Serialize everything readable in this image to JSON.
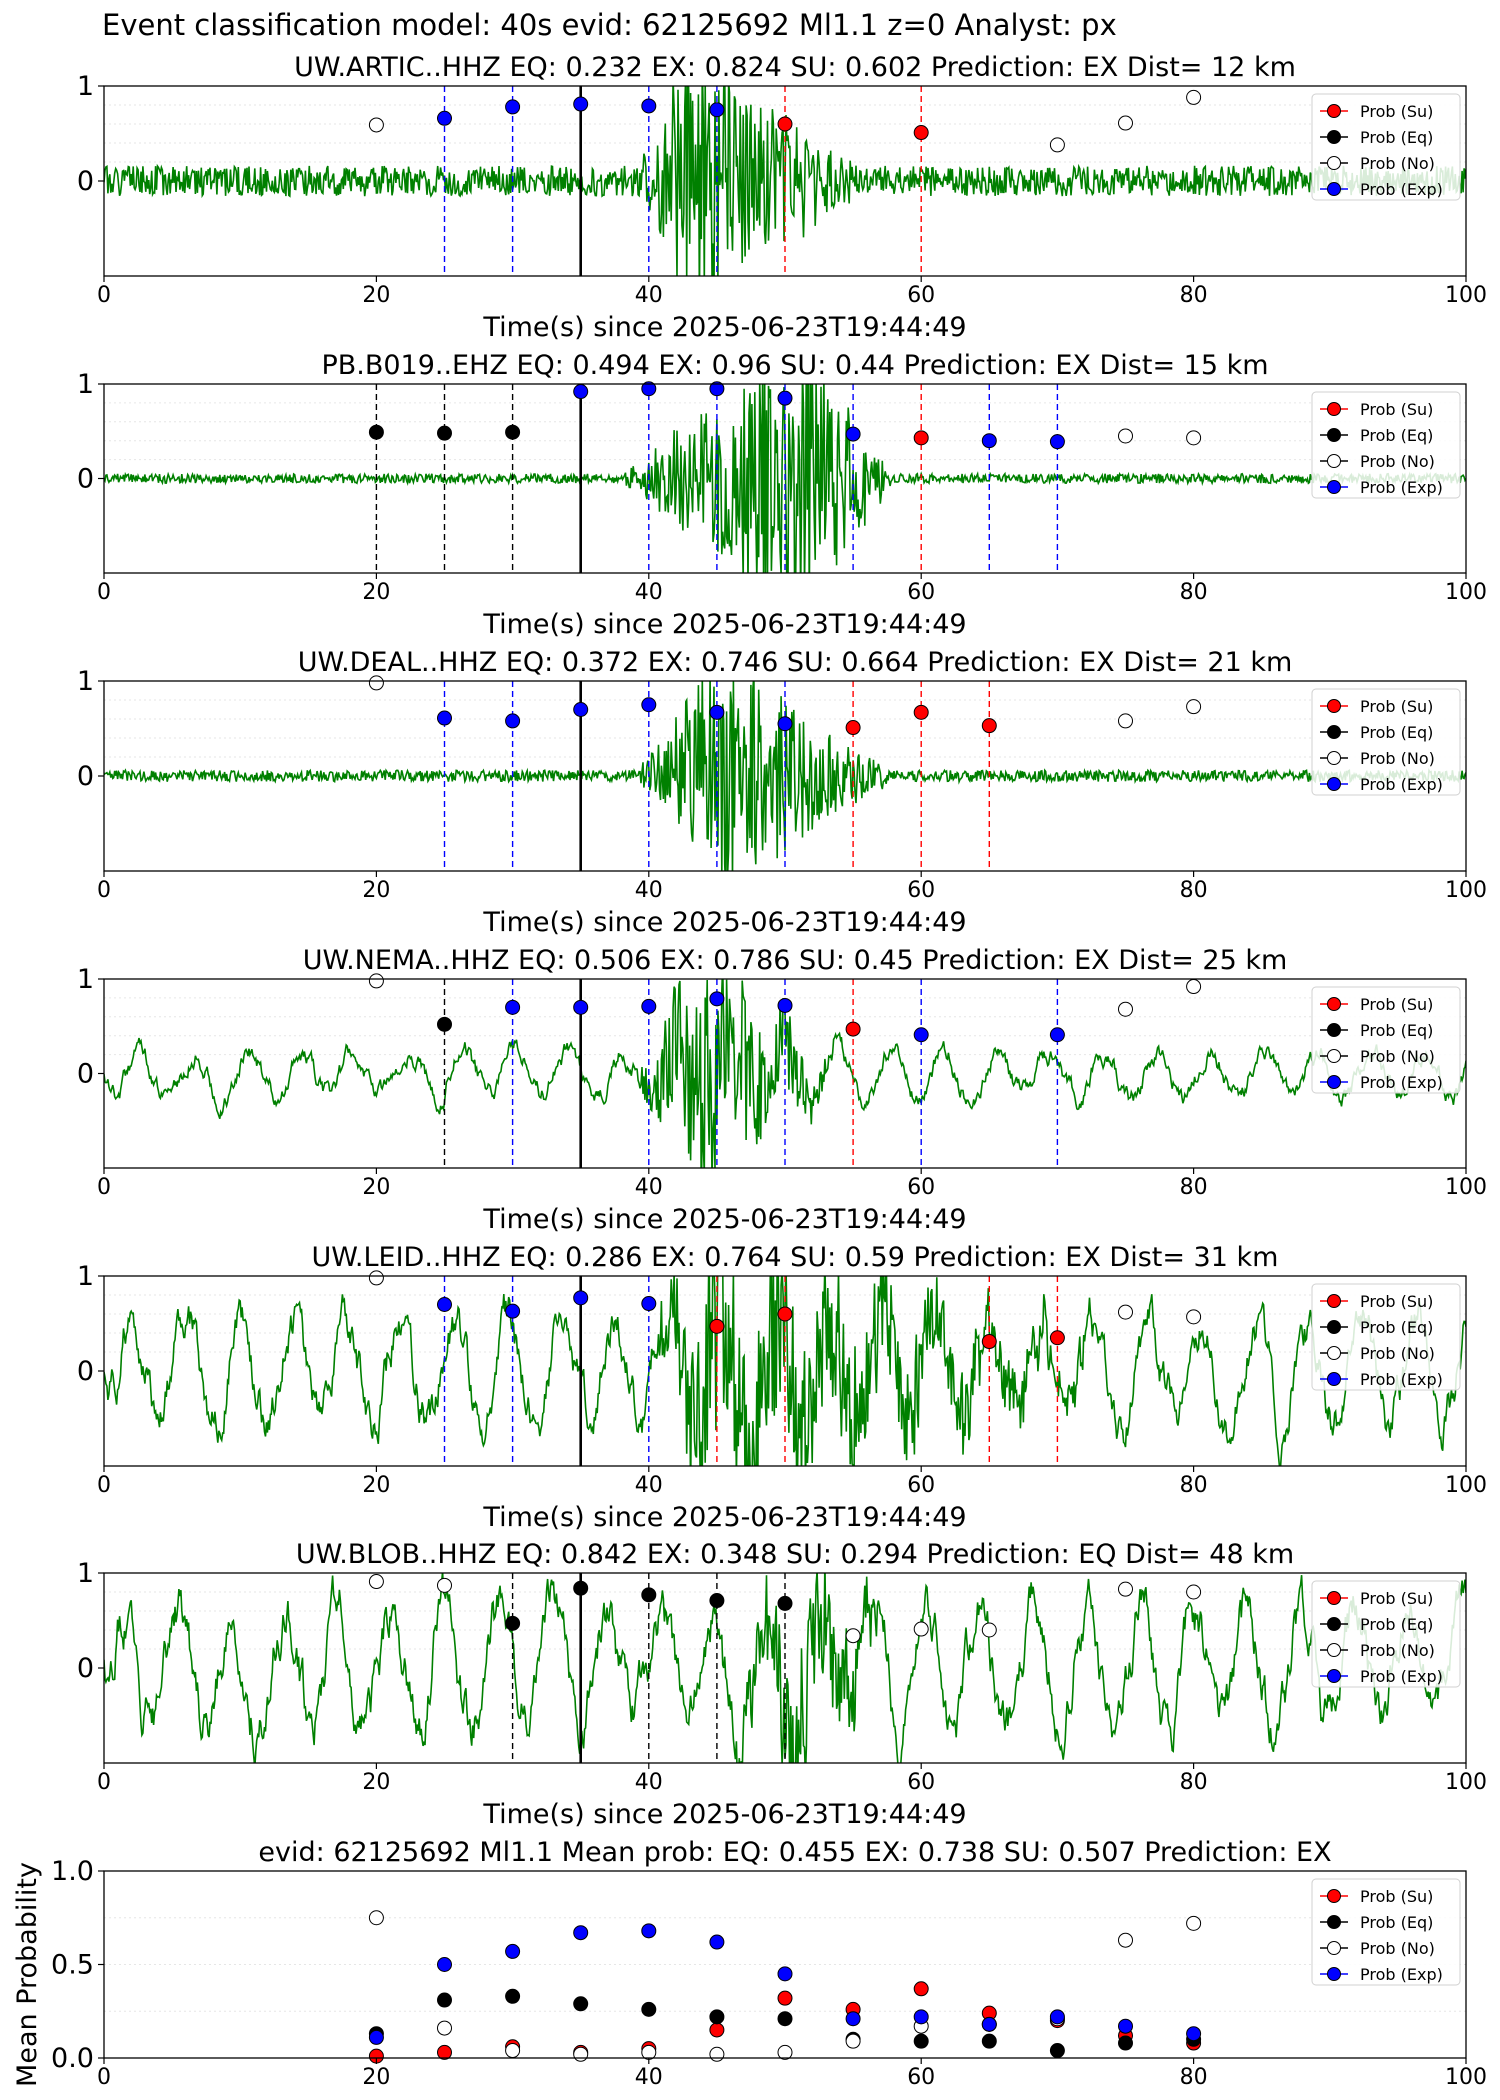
{
  "main_title": "Event classification model: 40s evid: 62125692 Ml1.1 z=0 Analyst: px",
  "colors": {
    "trace": "#008000",
    "su": "#ff0000",
    "eq": "#000000",
    "no": "#ffffff",
    "exp": "#0000ff"
  },
  "legend_labels": [
    "Prob (Su)",
    "Prob (Eq)",
    "Prob (No)",
    "Prob (Exp)"
  ],
  "chart_data": [
    {
      "type": "scatter",
      "title": "UW.ARTIC..HHZ   EQ: 0.232  EX: 0.824  SU: 0.602   Prediction: EX    Dist= 12 km",
      "xlabel": "Time(s) since 2025-06-23T19:44:49",
      "xlim": [
        0,
        100
      ],
      "ylim": [
        -1,
        1
      ],
      "xticks": [
        0,
        20,
        40,
        60,
        80,
        100
      ],
      "yticks": [
        "1",
        "0"
      ],
      "pick_time": 35,
      "trace": {
        "noise": 0.16,
        "event_start": 39,
        "event_peak": 43,
        "event_end": 56,
        "event_amp": 1.4,
        "seed": 1
      },
      "lines": [
        {
          "x": 25,
          "cls": "exp"
        },
        {
          "x": 30,
          "cls": "exp"
        },
        {
          "x": 40,
          "cls": "exp"
        },
        {
          "x": 45,
          "cls": "exp"
        },
        {
          "x": 50,
          "cls": "su"
        },
        {
          "x": 60,
          "cls": "su"
        }
      ],
      "points": [
        {
          "x": 20,
          "y": 0.59,
          "cls": "no"
        },
        {
          "x": 25,
          "y": 0.66,
          "cls": "exp"
        },
        {
          "x": 30,
          "y": 0.78,
          "cls": "exp"
        },
        {
          "x": 35,
          "y": 0.81,
          "cls": "exp"
        },
        {
          "x": 40,
          "y": 0.79,
          "cls": "exp"
        },
        {
          "x": 45,
          "y": 0.75,
          "cls": "exp"
        },
        {
          "x": 50,
          "y": 0.6,
          "cls": "su"
        },
        {
          "x": 60,
          "y": 0.51,
          "cls": "su"
        },
        {
          "x": 70,
          "y": 0.38,
          "cls": "no"
        },
        {
          "x": 75,
          "y": 0.61,
          "cls": "no"
        },
        {
          "x": 80,
          "y": 0.88,
          "cls": "no"
        }
      ],
      "legend": "upper right"
    },
    {
      "type": "scatter",
      "title": "PB.B019..EHZ   EQ: 0.494  EX: 0.96  SU: 0.44   Prediction: EX    Dist= 15 km",
      "xlabel": "Time(s) since 2025-06-23T19:44:49",
      "xlim": [
        0,
        100
      ],
      "ylim": [
        -1,
        1
      ],
      "xticks": [
        0,
        20,
        40,
        60,
        80,
        100
      ],
      "yticks": [
        "1",
        "0"
      ],
      "pick_time": 35,
      "trace": {
        "noise": 0.05,
        "event_start": 38,
        "event_peak": 51,
        "event_end": 58,
        "event_amp": 1.6,
        "seed": 2
      },
      "lines": [
        {
          "x": 20,
          "cls": "eq"
        },
        {
          "x": 25,
          "cls": "eq"
        },
        {
          "x": 30,
          "cls": "eq"
        },
        {
          "x": 40,
          "cls": "exp"
        },
        {
          "x": 45,
          "cls": "exp"
        },
        {
          "x": 50,
          "cls": "exp"
        },
        {
          "x": 55,
          "cls": "exp"
        },
        {
          "x": 60,
          "cls": "su"
        },
        {
          "x": 65,
          "cls": "exp"
        },
        {
          "x": 70,
          "cls": "exp"
        }
      ],
      "points": [
        {
          "x": 20,
          "y": 0.49,
          "cls": "eq"
        },
        {
          "x": 25,
          "y": 0.48,
          "cls": "eq"
        },
        {
          "x": 30,
          "y": 0.49,
          "cls": "eq"
        },
        {
          "x": 35,
          "y": 0.92,
          "cls": "exp"
        },
        {
          "x": 40,
          "y": 0.95,
          "cls": "exp"
        },
        {
          "x": 45,
          "y": 0.95,
          "cls": "exp"
        },
        {
          "x": 50,
          "y": 0.85,
          "cls": "exp"
        },
        {
          "x": 55,
          "y": 0.47,
          "cls": "exp"
        },
        {
          "x": 60,
          "y": 0.43,
          "cls": "su"
        },
        {
          "x": 65,
          "y": 0.4,
          "cls": "exp"
        },
        {
          "x": 70,
          "y": 0.39,
          "cls": "exp"
        },
        {
          "x": 75,
          "y": 0.45,
          "cls": "no"
        },
        {
          "x": 80,
          "y": 0.43,
          "cls": "no"
        }
      ],
      "legend": "upper right"
    },
    {
      "type": "scatter",
      "title": "UW.DEAL..HHZ   EQ: 0.372  EX: 0.746  SU: 0.664   Prediction: EX    Dist= 21 km",
      "xlabel": "Time(s) since 2025-06-23T19:44:49",
      "xlim": [
        0,
        100
      ],
      "ylim": [
        -1,
        1
      ],
      "xticks": [
        0,
        20,
        40,
        60,
        80,
        100
      ],
      "yticks": [
        "1",
        "0"
      ],
      "pick_time": 35,
      "trace": {
        "noise": 0.06,
        "event_start": 39,
        "event_peak": 45,
        "event_end": 58,
        "event_amp": 1.3,
        "seed": 3
      },
      "lines": [
        {
          "x": 25,
          "cls": "exp"
        },
        {
          "x": 30,
          "cls": "exp"
        },
        {
          "x": 40,
          "cls": "exp"
        },
        {
          "x": 45,
          "cls": "exp"
        },
        {
          "x": 50,
          "cls": "exp"
        },
        {
          "x": 55,
          "cls": "su"
        },
        {
          "x": 60,
          "cls": "su"
        },
        {
          "x": 65,
          "cls": "su"
        }
      ],
      "points": [
        {
          "x": 20,
          "y": 0.98,
          "cls": "no"
        },
        {
          "x": 25,
          "y": 0.61,
          "cls": "exp"
        },
        {
          "x": 30,
          "y": 0.58,
          "cls": "exp"
        },
        {
          "x": 35,
          "y": 0.7,
          "cls": "exp"
        },
        {
          "x": 40,
          "y": 0.75,
          "cls": "exp"
        },
        {
          "x": 45,
          "y": 0.67,
          "cls": "exp"
        },
        {
          "x": 50,
          "y": 0.55,
          "cls": "exp"
        },
        {
          "x": 55,
          "y": 0.51,
          "cls": "su"
        },
        {
          "x": 60,
          "y": 0.67,
          "cls": "su"
        },
        {
          "x": 65,
          "y": 0.53,
          "cls": "su"
        },
        {
          "x": 75,
          "y": 0.58,
          "cls": "no"
        },
        {
          "x": 80,
          "y": 0.73,
          "cls": "no"
        }
      ],
      "legend": "upper right"
    },
    {
      "type": "scatter",
      "title": "UW.NEMA..HHZ   EQ: 0.506  EX: 0.786  SU: 0.45   Prediction: EX    Dist= 25 km",
      "xlabel": "Time(s) since 2025-06-23T19:44:49",
      "xlim": [
        0,
        100
      ],
      "ylim": [
        -1,
        1
      ],
      "xticks": [
        0,
        20,
        40,
        60,
        80,
        100
      ],
      "yticks": [
        "1",
        "0"
      ],
      "pick_time": 35,
      "trace": {
        "noise": 0.12,
        "event_start": 39,
        "event_peak": 44,
        "event_end": 54,
        "event_amp": 1.2,
        "seed": 4,
        "smooth": true
      },
      "lines": [
        {
          "x": 25,
          "cls": "eq"
        },
        {
          "x": 30,
          "cls": "exp"
        },
        {
          "x": 40,
          "cls": "exp"
        },
        {
          "x": 45,
          "cls": "exp"
        },
        {
          "x": 50,
          "cls": "exp"
        },
        {
          "x": 55,
          "cls": "su"
        },
        {
          "x": 60,
          "cls": "exp"
        },
        {
          "x": 70,
          "cls": "exp"
        }
      ],
      "points": [
        {
          "x": 20,
          "y": 0.98,
          "cls": "no"
        },
        {
          "x": 25,
          "y": 0.52,
          "cls": "eq"
        },
        {
          "x": 30,
          "y": 0.7,
          "cls": "exp"
        },
        {
          "x": 35,
          "y": 0.7,
          "cls": "exp"
        },
        {
          "x": 40,
          "y": 0.71,
          "cls": "exp"
        },
        {
          "x": 45,
          "y": 0.79,
          "cls": "exp"
        },
        {
          "x": 50,
          "y": 0.72,
          "cls": "exp"
        },
        {
          "x": 55,
          "y": 0.47,
          "cls": "su"
        },
        {
          "x": 60,
          "y": 0.41,
          "cls": "exp"
        },
        {
          "x": 70,
          "y": 0.41,
          "cls": "exp"
        },
        {
          "x": 75,
          "y": 0.68,
          "cls": "no"
        },
        {
          "x": 80,
          "y": 0.92,
          "cls": "no"
        }
      ],
      "legend": "upper right"
    },
    {
      "type": "scatter",
      "title": "UW.LEID..HHZ   EQ: 0.286  EX: 0.764  SU: 0.59   Prediction: EX    Dist= 31 km",
      "xlabel": "Time(s) since 2025-06-23T19:44:49",
      "xlim": [
        0,
        100
      ],
      "ylim": [
        -1,
        1
      ],
      "xticks": [
        0,
        20,
        40,
        60,
        80,
        100
      ],
      "yticks": [
        "1",
        "0"
      ],
      "pick_time": 35,
      "trace": {
        "noise": 0.26,
        "event_start": 40,
        "event_peak": 44,
        "event_end": 75,
        "event_amp": 1.1,
        "seed": 5,
        "smooth": true
      },
      "lines": [
        {
          "x": 25,
          "cls": "exp"
        },
        {
          "x": 30,
          "cls": "exp"
        },
        {
          "x": 40,
          "cls": "exp"
        },
        {
          "x": 45,
          "cls": "su"
        },
        {
          "x": 50,
          "cls": "su"
        },
        {
          "x": 65,
          "cls": "su"
        },
        {
          "x": 70,
          "cls": "su"
        }
      ],
      "points": [
        {
          "x": 20,
          "y": 0.98,
          "cls": "no"
        },
        {
          "x": 25,
          "y": 0.7,
          "cls": "exp"
        },
        {
          "x": 30,
          "y": 0.63,
          "cls": "exp"
        },
        {
          "x": 35,
          "y": 0.77,
          "cls": "exp"
        },
        {
          "x": 40,
          "y": 0.71,
          "cls": "exp"
        },
        {
          "x": 45,
          "y": 0.47,
          "cls": "su"
        },
        {
          "x": 50,
          "y": 0.6,
          "cls": "su"
        },
        {
          "x": 65,
          "y": 0.31,
          "cls": "su"
        },
        {
          "x": 70,
          "y": 0.35,
          "cls": "su"
        },
        {
          "x": 75,
          "y": 0.62,
          "cls": "no"
        },
        {
          "x": 80,
          "y": 0.57,
          "cls": "no"
        }
      ],
      "legend": "upper right"
    },
    {
      "type": "scatter",
      "title": "UW.BLOB..HHZ   EQ: 0.842  EX: 0.348  SU: 0.294   Prediction: EQ    Dist= 48 km",
      "xlabel": "Time(s) since 2025-06-23T19:44:49",
      "xlim": [
        0,
        100
      ],
      "ylim": [
        -1,
        1
      ],
      "xticks": [
        0,
        20,
        40,
        60,
        80,
        100
      ],
      "yticks": [
        "1",
        "0"
      ],
      "pick_time": 35,
      "trace": {
        "noise": 0.3,
        "event_start": 45,
        "event_peak": 51,
        "event_end": 58,
        "event_amp": 0.9,
        "seed": 6,
        "smooth": true
      },
      "lines": [
        {
          "x": 30,
          "cls": "eq"
        },
        {
          "x": 40,
          "cls": "eq"
        },
        {
          "x": 45,
          "cls": "eq"
        },
        {
          "x": 50,
          "cls": "eq"
        }
      ],
      "points": [
        {
          "x": 20,
          "y": 0.91,
          "cls": "no"
        },
        {
          "x": 25,
          "y": 0.87,
          "cls": "no"
        },
        {
          "x": 30,
          "y": 0.47,
          "cls": "eq"
        },
        {
          "x": 35,
          "y": 0.84,
          "cls": "eq"
        },
        {
          "x": 40,
          "y": 0.77,
          "cls": "eq"
        },
        {
          "x": 45,
          "y": 0.71,
          "cls": "eq"
        },
        {
          "x": 50,
          "y": 0.68,
          "cls": "eq"
        },
        {
          "x": 55,
          "y": 0.34,
          "cls": "no"
        },
        {
          "x": 60,
          "y": 0.41,
          "cls": "no"
        },
        {
          "x": 65,
          "y": 0.4,
          "cls": "no"
        },
        {
          "x": 75,
          "y": 0.83,
          "cls": "no"
        },
        {
          "x": 80,
          "y": 0.8,
          "cls": "no"
        }
      ],
      "legend": "upper right"
    },
    {
      "type": "scatter",
      "title": "evid: 62125692  Ml1.1   Mean prob:   EQ: 0.455  EX: 0.738  SU: 0.507   Prediction: EX",
      "ylabel": "Mean Probability",
      "xlim": [
        0,
        100
      ],
      "ylim": [
        0,
        1
      ],
      "xticks": [
        0,
        20,
        40,
        60,
        80,
        100
      ],
      "yticks": [
        "1.0",
        "0.5",
        "0.0"
      ],
      "mean_panel": true,
      "series": [
        {
          "name": "Prob (Su)",
          "cls": "su",
          "x": [
            20,
            25,
            30,
            35,
            40,
            45,
            50,
            55,
            60,
            65,
            70,
            75,
            80
          ],
          "y": [
            0.01,
            0.03,
            0.06,
            0.03,
            0.05,
            0.15,
            0.32,
            0.26,
            0.37,
            0.24,
            0.2,
            0.12,
            0.08
          ]
        },
        {
          "name": "Prob (Eq)",
          "cls": "eq",
          "x": [
            20,
            25,
            30,
            35,
            40,
            45,
            50,
            55,
            60,
            65,
            70,
            75,
            80
          ],
          "y": [
            0.13,
            0.31,
            0.33,
            0.29,
            0.26,
            0.22,
            0.21,
            0.1,
            0.09,
            0.09,
            0.04,
            0.08,
            0.1
          ]
        },
        {
          "name": "Prob (No)",
          "cls": "no",
          "x": [
            20,
            25,
            30,
            35,
            40,
            45,
            50,
            55,
            60,
            65,
            70,
            75,
            80
          ],
          "y": [
            0.75,
            0.16,
            0.04,
            0.02,
            0.03,
            0.02,
            0.03,
            0.09,
            0.17,
            0.18,
            0.21,
            0.63,
            0.72
          ]
        },
        {
          "name": "Prob (Exp)",
          "cls": "exp",
          "x": [
            20,
            25,
            30,
            35,
            40,
            45,
            50,
            55,
            60,
            65,
            70,
            75,
            80
          ],
          "y": [
            0.11,
            0.5,
            0.57,
            0.67,
            0.68,
            0.62,
            0.45,
            0.21,
            0.22,
            0.18,
            0.22,
            0.17,
            0.13
          ]
        }
      ],
      "legend": "upper right"
    }
  ]
}
